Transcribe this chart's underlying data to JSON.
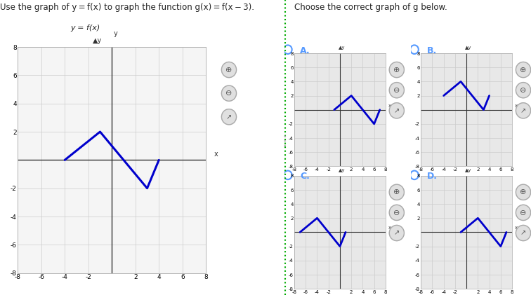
{
  "title_left": "Use the graph of y = f(x) to graph the function g(x) = f(x − 3).",
  "title_right": "Choose the correct graph of g below.",
  "bg_color": "#ffffff",
  "grid_color": "#cccccc",
  "axis_color": "#333333",
  "line_color": "#0000cc",
  "line_width": 2.2,
  "fx_points": [
    [
      -4,
      0
    ],
    [
      -1,
      2
    ],
    [
      1,
      0
    ],
    [
      3,
      -2
    ],
    [
      4,
      0
    ]
  ],
  "gx_A_points": [
    [
      -1,
      0
    ],
    [
      2,
      2
    ],
    [
      4,
      0
    ],
    [
      6,
      -2
    ],
    [
      7,
      0
    ]
  ],
  "gx_B_points": [
    [
      -4,
      2
    ],
    [
      -1,
      4
    ],
    [
      1,
      2
    ],
    [
      3,
      0
    ],
    [
      4,
      2
    ]
  ],
  "gx_C_points": [
    [
      -7,
      0
    ],
    [
      -4,
      2
    ],
    [
      -2,
      0
    ],
    [
      0,
      -2
    ],
    [
      1,
      0
    ]
  ],
  "gx_D_points": [
    [
      -1,
      0
    ],
    [
      2,
      2
    ],
    [
      4,
      0
    ],
    [
      6,
      -2
    ],
    [
      7,
      0
    ]
  ],
  "xlim": [
    -8,
    8
  ],
  "ylim": [
    -8,
    8
  ],
  "tick_step": 2,
  "label_fx": "y = f(x)",
  "label_A": "A.",
  "label_B": "B.",
  "label_C": "C.",
  "label_D": "D.",
  "radio_color": "#5599ff",
  "divider_color": "#00aa00",
  "small_graph_xlim": [
    -8,
    8
  ],
  "small_graph_ylim": [
    -8,
    8
  ]
}
